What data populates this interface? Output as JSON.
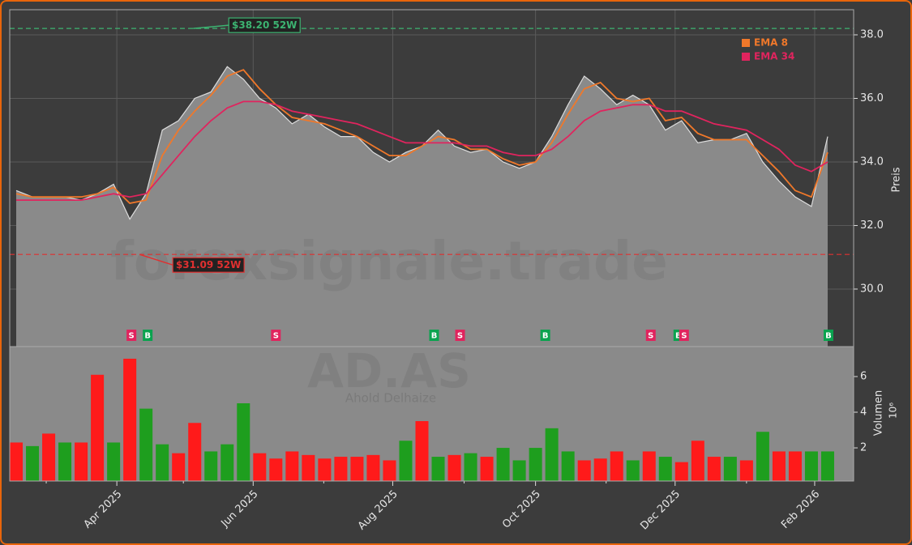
{
  "chart_data": [
    {
      "type": "line",
      "ylabel": "Preis",
      "watermark": "forexsignale.trade",
      "x": [
        2,
        7,
        12,
        17,
        22,
        27,
        32,
        37,
        42,
        47,
        52,
        57,
        62,
        67,
        72,
        77,
        82,
        87,
        92,
        97,
        102,
        107,
        112,
        117,
        122,
        127,
        132,
        137,
        142,
        147,
        152,
        157,
        162,
        167,
        172,
        177,
        182,
        187,
        192,
        197,
        202,
        207,
        212,
        217,
        222,
        227,
        232,
        237,
        242,
        247,
        252
      ],
      "values": [
        33.1,
        32.9,
        32.9,
        32.9,
        32.8,
        33.0,
        33.3,
        32.2,
        33.0,
        35.0,
        35.3,
        36.0,
        36.2,
        37.0,
        36.6,
        36.0,
        35.7,
        35.2,
        35.5,
        35.1,
        34.8,
        34.8,
        34.3,
        34.0,
        34.3,
        34.5,
        35.0,
        34.5,
        34.3,
        34.4,
        34.0,
        33.8,
        34.0,
        34.8,
        35.8,
        36.7,
        36.3,
        35.8,
        36.1,
        35.8,
        35.0,
        35.3,
        34.6,
        34.7,
        34.7,
        34.9,
        34.0,
        33.4,
        32.9,
        32.6,
        34.8
      ],
      "color": "#dddddd",
      "series": [
        {
          "name": "EMA 8",
          "color": "#f0782a",
          "values": [
            33.0,
            32.9,
            32.9,
            32.9,
            32.9,
            33.0,
            33.2,
            32.7,
            32.8,
            34.2,
            35.0,
            35.6,
            36.1,
            36.7,
            36.9,
            36.3,
            35.8,
            35.4,
            35.3,
            35.2,
            35.0,
            34.8,
            34.5,
            34.2,
            34.2,
            34.5,
            34.8,
            34.7,
            34.4,
            34.4,
            34.1,
            33.9,
            34.0,
            34.6,
            35.5,
            36.3,
            36.5,
            36.0,
            35.9,
            36.0,
            35.3,
            35.4,
            34.9,
            34.7,
            34.7,
            34.7,
            34.2,
            33.7,
            33.1,
            32.9,
            34.3
          ]
        },
        {
          "name": "EMA 34",
          "color": "#e0245e",
          "values": [
            32.8,
            32.8,
            32.8,
            32.8,
            32.8,
            32.9,
            33.0,
            32.9,
            33.0,
            33.6,
            34.2,
            34.8,
            35.3,
            35.7,
            35.9,
            35.9,
            35.8,
            35.6,
            35.5,
            35.4,
            35.3,
            35.2,
            35.0,
            34.8,
            34.6,
            34.6,
            34.6,
            34.6,
            34.5,
            34.5,
            34.3,
            34.2,
            34.2,
            34.4,
            34.8,
            35.3,
            35.6,
            35.7,
            35.8,
            35.8,
            35.6,
            35.6,
            35.4,
            35.2,
            35.1,
            35.0,
            34.7,
            34.4,
            33.9,
            33.7,
            34.0
          ]
        }
      ],
      "xlim": [
        0,
        260
      ],
      "ylim": [
        28.19,
        38.79
      ],
      "yticks": [
        {
          "value": 30,
          "label": "30.0"
        },
        {
          "value": 32,
          "label": "32.0"
        },
        {
          "value": 34,
          "label": "34.0"
        },
        {
          "value": 36,
          "label": "36.0"
        },
        {
          "value": 38,
          "label": "38.0"
        }
      ],
      "xticks": [
        33,
        75,
        118,
        162,
        205,
        248
      ],
      "grid": true,
      "high": {
        "value": 38.2,
        "x": 56,
        "label": "$38.20 52W",
        "color": "#3cb371"
      },
      "low": {
        "value": 31.09,
        "x": 39.5,
        "label": "$31.09 52W",
        "color": "#e03030"
      },
      "signals": [
        {
          "label": "S",
          "x": 37.5,
          "color": "#e0245e"
        },
        {
          "label": "B",
          "x": 42.5,
          "color": "#0aa34f"
        },
        {
          "label": "S",
          "x": 82,
          "color": "#e0245e"
        },
        {
          "label": "B",
          "x": 130.75,
          "color": "#0aa34f"
        },
        {
          "label": "S",
          "x": 138.75,
          "color": "#e0245e"
        },
        {
          "label": "B",
          "x": 165,
          "color": "#0aa34f"
        },
        {
          "label": "S",
          "x": 197.5,
          "color": "#e0245e"
        },
        {
          "label": "B",
          "x": 206,
          "color": "#0aa34f"
        },
        {
          "label": "S",
          "x": 207.75,
          "color": "#e0245e"
        },
        {
          "label": "B",
          "x": 252.25,
          "color": "#0aa34f"
        }
      ]
    },
    {
      "type": "bar",
      "ylabel": "Volumen",
      "exponent_label": "10⁶",
      "symbol": "AD.AS",
      "company": "Ahold Delhaize",
      "x": [
        2,
        7,
        12,
        17,
        22,
        27,
        32,
        37,
        42,
        47,
        52,
        57,
        62,
        67,
        72,
        77,
        82,
        87,
        92,
        97,
        102,
        107,
        112,
        117,
        122,
        127,
        132,
        137,
        142,
        147,
        152,
        157,
        162,
        167,
        172,
        177,
        182,
        187,
        192,
        197,
        202,
        207,
        212,
        217,
        222,
        227,
        232,
        237,
        242,
        247,
        252
      ],
      "values": [
        2.3,
        2.1,
        2.8,
        2.3,
        2.3,
        6.1,
        2.3,
        7.0,
        4.2,
        2.2,
        1.7,
        3.4,
        1.8,
        2.2,
        4.5,
        1.7,
        1.4,
        1.8,
        1.6,
        1.4,
        1.5,
        1.5,
        1.6,
        1.3,
        2.4,
        3.5,
        1.5,
        1.6,
        1.7,
        1.5,
        2.0,
        1.3,
        2.0,
        3.1,
        1.8,
        1.3,
        1.4,
        1.8,
        1.3,
        1.8,
        1.5,
        1.2,
        2.4,
        1.5,
        1.5,
        1.3,
        2.9,
        1.8,
        1.8,
        1.8,
        1.8
      ],
      "bar_colors": [
        "#ff1a1a",
        "#1e9e1e",
        "#ff1a1a",
        "#1e9e1e",
        "#ff1a1a",
        "#ff1a1a",
        "#1e9e1e",
        "#ff1a1a",
        "#1e9e1e",
        "#1e9e1e",
        "#ff1a1a",
        "#ff1a1a",
        "#1e9e1e",
        "#1e9e1e",
        "#1e9e1e",
        "#ff1a1a",
        "#ff1a1a",
        "#ff1a1a",
        "#ff1a1a",
        "#ff1a1a",
        "#ff1a1a",
        "#ff1a1a",
        "#ff1a1a",
        "#ff1a1a",
        "#1e9e1e",
        "#ff1a1a",
        "#1e9e1e",
        "#ff1a1a",
        "#1e9e1e",
        "#ff1a1a",
        "#1e9e1e",
        "#1e9e1e",
        "#1e9e1e",
        "#1e9e1e",
        "#1e9e1e",
        "#ff1a1a",
        "#ff1a1a",
        "#ff1a1a",
        "#1e9e1e",
        "#ff1a1a",
        "#1e9e1e",
        "#ff1a1a",
        "#ff1a1a",
        "#ff1a1a",
        "#1e9e1e",
        "#ff1a1a",
        "#1e9e1e",
        "#ff1a1a",
        "#ff1a1a",
        "#1e9e1e",
        "#1e9e1e"
      ],
      "xlim": [
        0,
        260
      ],
      "ylim": [
        0.14,
        7.68
      ],
      "yticks": [
        2,
        4,
        6
      ],
      "xticks": [
        {
          "value": 33,
          "label": "Apr 2025"
        },
        {
          "value": 75,
          "label": "Jun 2025"
        },
        {
          "value": 118,
          "label": "Aug 2025"
        },
        {
          "value": 162,
          "label": "Oct 2025"
        },
        {
          "value": 205,
          "label": "Dec 2025"
        },
        {
          "value": 248,
          "label": "Feb 2026"
        }
      ],
      "xminorticks": [
        11.25,
        53.5,
        96.75,
        140,
        183.75,
        227
      ]
    }
  ]
}
